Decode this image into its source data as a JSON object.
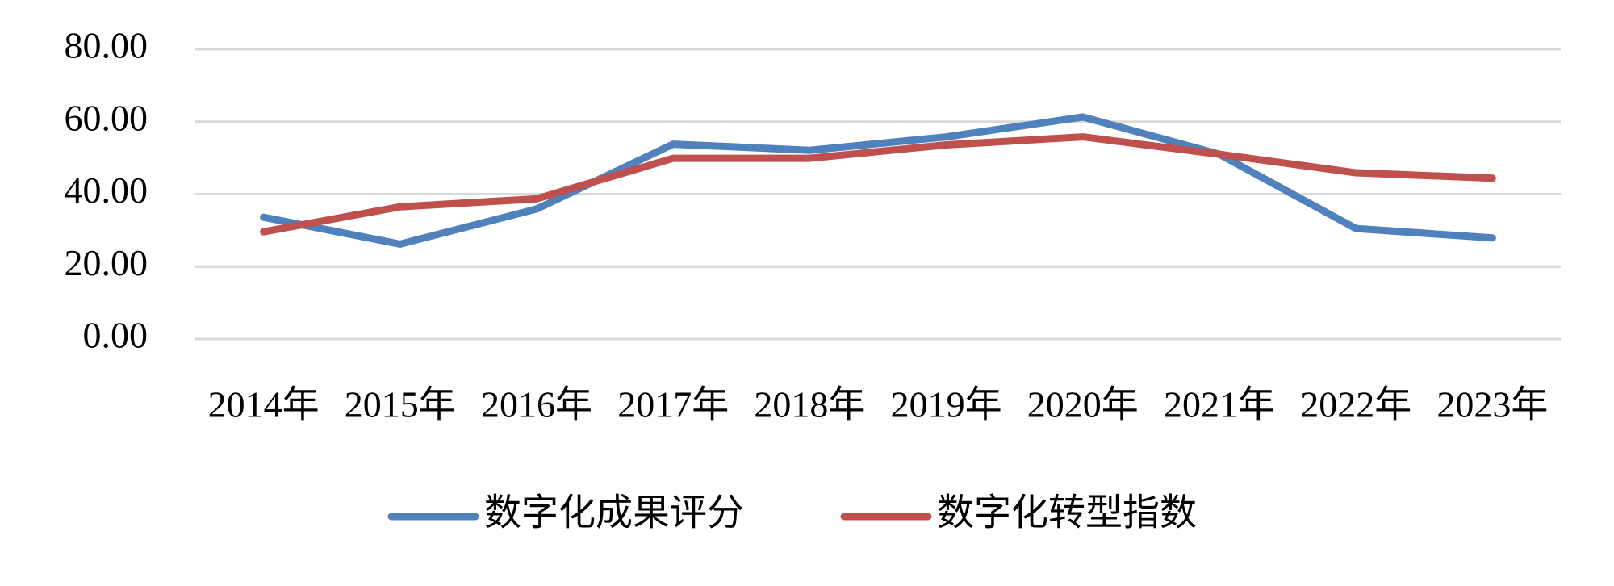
{
  "chart_data": {
    "type": "line",
    "categories": [
      "2014年",
      "2015年",
      "2016年",
      "2017年",
      "2018年",
      "2019年",
      "2020年",
      "2021年",
      "2022年",
      "2023年"
    ],
    "series": [
      {
        "name": "数字化成果评分",
        "color": "#4f81bd",
        "values": [
          33.6,
          26.2,
          35.9,
          53.8,
          52.1,
          55.8,
          61.3,
          51.0,
          30.5,
          27.9
        ]
      },
      {
        "name": "数字化转型指数",
        "color": "#c0504d",
        "values": [
          29.6,
          36.5,
          38.7,
          49.9,
          49.9,
          53.6,
          55.8,
          51.0,
          45.9,
          44.4
        ]
      }
    ],
    "ylim": [
      0,
      80
    ],
    "yticks": [
      {
        "value": 0,
        "label": "0.00"
      },
      {
        "value": 20,
        "label": "20.00"
      },
      {
        "value": 40,
        "label": "40.00"
      },
      {
        "value": 60,
        "label": "60.00"
      },
      {
        "value": 80,
        "label": "80.00"
      }
    ],
    "grid": true,
    "legend": "bottom"
  }
}
